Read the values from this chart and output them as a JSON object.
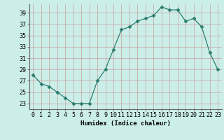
{
  "x": [
    0,
    1,
    2,
    3,
    4,
    5,
    6,
    7,
    8,
    9,
    10,
    11,
    12,
    13,
    14,
    15,
    16,
    17,
    18,
    19,
    20,
    21,
    22,
    23
  ],
  "y": [
    28,
    26.5,
    26,
    25,
    24,
    23,
    23,
    23,
    27,
    29,
    32.5,
    36,
    36.5,
    37.5,
    38,
    38.5,
    40,
    39.5,
    39.5,
    37.5,
    38,
    36.5,
    32,
    29
  ],
  "xlabel": "Humidex (Indice chaleur)",
  "xlim": [
    -0.5,
    23.5
  ],
  "ylim": [
    22,
    40.5
  ],
  "yticks": [
    23,
    25,
    27,
    29,
    31,
    33,
    35,
    37,
    39
  ],
  "xticks": [
    0,
    1,
    2,
    3,
    4,
    5,
    6,
    7,
    8,
    9,
    10,
    11,
    12,
    13,
    14,
    15,
    16,
    17,
    18,
    19,
    20,
    21,
    22,
    23
  ],
  "line_color": "#2d7d6f",
  "marker_size": 2.5,
  "bg_color": "#cceee8",
  "grid_color": "#c8a0a0",
  "label_fontsize": 6.5,
  "tick_fontsize": 6.0
}
